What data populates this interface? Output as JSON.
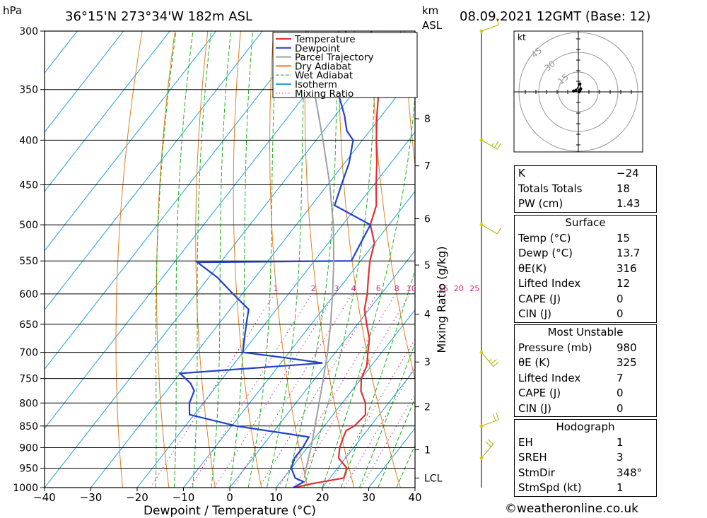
{
  "header": {
    "pressure_unit": "hPa",
    "location": "36°15'N  273°34'W  182m  ASL",
    "km_label": "km",
    "asl_label": "ASL",
    "datetime": "08.09.2021  12GMT  (Base: 12)"
  },
  "chart_data": {
    "type": "line",
    "subtype": "skew-T log-P diagram",
    "xlabel": "Dewpoint / Temperature (°C)",
    "ylabel": "hPa",
    "right_axis_label": "Mixing Ratio (g/kg)",
    "x_ticks": [
      -40,
      -30,
      -20,
      -10,
      0,
      10,
      20,
      30,
      40
    ],
    "x_tick_labels": [
      "−40",
      "−30",
      "−20",
      "−10",
      "0",
      "10",
      "20",
      "30",
      "40"
    ],
    "xlim": [
      -40,
      40
    ],
    "pressure_levels": [
      300,
      350,
      400,
      450,
      500,
      550,
      600,
      650,
      700,
      750,
      800,
      850,
      900,
      950,
      1000
    ],
    "pressure_labels": [
      "300",
      "350",
      "400",
      "450",
      "500",
      "550",
      "600",
      "650",
      "700",
      "750",
      "800",
      "850",
      "900",
      "950",
      "1000"
    ],
    "ylim": [
      1000,
      300
    ],
    "y_scale": "log",
    "skew_deg_per_log": 64,
    "height_ticks": [
      {
        "label": "8",
        "p": 378
      },
      {
        "label": "7",
        "p": 428
      },
      {
        "label": "6",
        "p": 492
      },
      {
        "label": "5",
        "p": 556
      },
      {
        "label": "4",
        "p": 633
      },
      {
        "label": "3",
        "p": 718
      },
      {
        "label": "2",
        "p": 808
      },
      {
        "label": "1",
        "p": 905
      },
      {
        "label": "LCL",
        "p": 975
      }
    ],
    "mixing_ratio_labels": [
      "1",
      "2",
      "3",
      "4",
      "6",
      "8",
      "10",
      "16",
      "20",
      "25"
    ],
    "mixing_ratio_values": [
      1,
      2,
      3,
      4,
      6,
      8,
      10,
      16,
      20,
      25
    ],
    "legend": {
      "placement": "top-right",
      "items": [
        {
          "label": "Temperature",
          "color": "#e03030",
          "style": "solid"
        },
        {
          "label": "Dewpoint",
          "color": "#2040d0",
          "style": "solid"
        },
        {
          "label": "Parcel Trajectory",
          "color": "#a0a0a0",
          "style": "solid"
        },
        {
          "label": "Dry Adiabat",
          "color": "#e08020",
          "style": "solid"
        },
        {
          "label": "Wet Adiabat",
          "color": "#20b020",
          "style": "dashed"
        },
        {
          "label": "Isotherm",
          "color": "#20a0e0",
          "style": "solid"
        },
        {
          "label": "Mixing Ratio",
          "color": "#d02080",
          "style": "dotted"
        }
      ]
    },
    "series": [
      {
        "name": "Temperature",
        "color": "#e03030",
        "points": [
          [
            1000,
            14
          ],
          [
            990,
            17
          ],
          [
            975,
            23
          ],
          [
            950,
            22
          ],
          [
            925,
            18.5
          ],
          [
            900,
            17
          ],
          [
            875,
            16
          ],
          [
            860,
            15.5
          ],
          [
            850,
            16.5
          ],
          [
            825,
            17
          ],
          [
            800,
            15
          ],
          [
            775,
            12
          ],
          [
            750,
            10
          ],
          [
            725,
            9
          ],
          [
            700,
            7
          ],
          [
            675,
            5
          ],
          [
            650,
            2
          ],
          [
            625,
            -1
          ],
          [
            600,
            -3
          ],
          [
            575,
            -5.5
          ],
          [
            550,
            -8
          ],
          [
            525,
            -10
          ],
          [
            500,
            -14
          ],
          [
            475,
            -16
          ],
          [
            450,
            -19.5
          ],
          [
            425,
            -23
          ],
          [
            400,
            -27
          ],
          [
            375,
            -31
          ],
          [
            350,
            -35
          ],
          [
            325,
            -41
          ],
          [
            300,
            -46.5
          ]
        ]
      },
      {
        "name": "Dewpoint",
        "color": "#2040d0",
        "points": [
          [
            1000,
            13.7
          ],
          [
            985,
            15
          ],
          [
            975,
            12.5
          ],
          [
            950,
            10
          ],
          [
            925,
            9
          ],
          [
            900,
            9
          ],
          [
            875,
            8.5
          ],
          [
            850,
            -9
          ],
          [
            825,
            -21
          ],
          [
            800,
            -23
          ],
          [
            775,
            -24
          ],
          [
            760,
            -26
          ],
          [
            740,
            -30
          ],
          [
            720,
            -1
          ],
          [
            710,
            -10
          ],
          [
            700,
            -20
          ],
          [
            675,
            -22
          ],
          [
            650,
            -24
          ],
          [
            625,
            -26
          ],
          [
            600,
            -32
          ],
          [
            575,
            -38
          ],
          [
            552,
            -45
          ],
          [
            550,
            -12
          ],
          [
            525,
            -13
          ],
          [
            500,
            -14
          ],
          [
            475,
            -25
          ],
          [
            450,
            -27
          ],
          [
            425,
            -29
          ],
          [
            400,
            -32
          ],
          [
            390,
            -35
          ],
          [
            375,
            -38
          ],
          [
            350,
            -44
          ],
          [
            325,
            -47
          ],
          [
            300,
            -52
          ]
        ]
      },
      {
        "name": "Parcel Trajectory",
        "color": "#a0a0a0",
        "points": [
          [
            975,
            14.5
          ],
          [
            950,
            13.2
          ],
          [
            900,
            10.8
          ],
          [
            850,
            8
          ],
          [
            800,
            5
          ],
          [
            750,
            1.8
          ],
          [
            700,
            -1.7
          ],
          [
            650,
            -5.8
          ],
          [
            600,
            -10.5
          ],
          [
            550,
            -15.8
          ],
          [
            500,
            -22
          ],
          [
            450,
            -29.5
          ],
          [
            400,
            -38.5
          ],
          [
            350,
            -49
          ],
          [
            320,
            -56
          ],
          [
            305,
            -60
          ]
        ]
      }
    ]
  },
  "hodograph": {
    "unit_label": "kt",
    "ring_labels": [
      "15",
      "30",
      "45"
    ],
    "ring_speeds": [
      15,
      30,
      45
    ],
    "points": [
      [
        1,
        0
      ],
      [
        2,
        2
      ],
      [
        3,
        4
      ],
      [
        2,
        10
      ],
      [
        -3,
        2
      ],
      [
        -6,
        1
      ]
    ]
  },
  "wind_barbs": [
    {
      "p": 300,
      "dir": 250,
      "spd": 10
    },
    {
      "p": 400,
      "dir": 300,
      "spd": 15
    },
    {
      "p": 500,
      "dir": 300,
      "spd": 10
    },
    {
      "p": 700,
      "dir": 320,
      "spd": 15
    },
    {
      "p": 850,
      "dir": 250,
      "spd": 20
    },
    {
      "p": 925,
      "dir": 220,
      "spd": 20
    }
  ],
  "indices": {
    "k_label": "K",
    "k_value": "−24",
    "tt_label": "Totals Totals",
    "tt_value": "18",
    "pw_label": "PW (cm)",
    "pw_value": "1.43"
  },
  "surface": {
    "title": "Surface",
    "temp_label": "Temp (°C)",
    "temp_value": "15",
    "dewp_label": "Dewp (°C)",
    "dewp_value": "13.7",
    "thetae_label": "θE(K)",
    "thetae_value": "316",
    "li_label": "Lifted Index",
    "li_value": "12",
    "cape_label": "CAPE (J)",
    "cape_value": "0",
    "cin_label": "CIN (J)",
    "cin_value": "0"
  },
  "most_unstable": {
    "title": "Most Unstable",
    "pressure_label": "Pressure (mb)",
    "pressure_value": "980",
    "thetae_label": "θE (K)",
    "thetae_value": "325",
    "li_label": "Lifted Index",
    "li_value": "7",
    "cape_label": "CAPE (J)",
    "cape_value": "0",
    "cin_label": "CIN (J)",
    "cin_value": "0"
  },
  "hodo_stats": {
    "title": "Hodograph",
    "eh_label": "EH",
    "eh_value": "1",
    "sreh_label": "SREH",
    "sreh_value": "3",
    "stmdir_label": "StmDir",
    "stmdir_value": "348°",
    "stmspd_label": "StmSpd (kt)",
    "stmspd_value": "1"
  },
  "credit": "©weatheronline.co.uk"
}
